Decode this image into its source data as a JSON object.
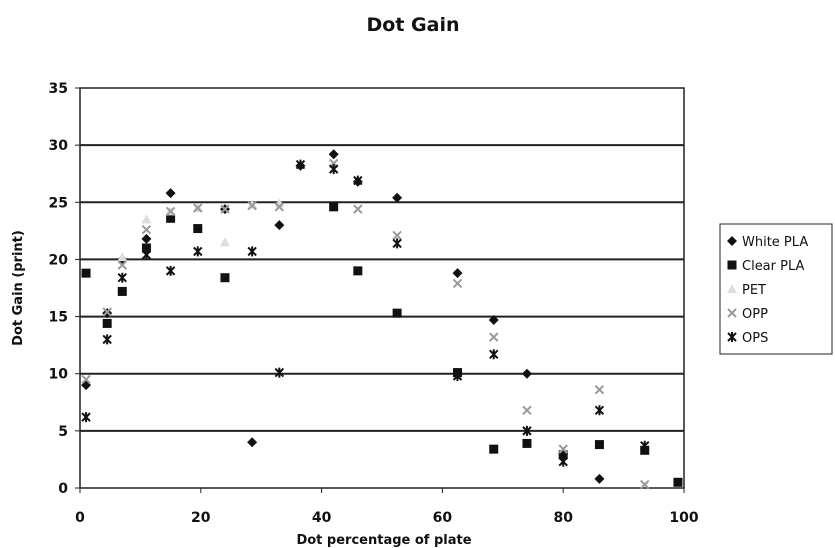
{
  "chart_data": {
    "type": "scatter",
    "title": "Dot Gain",
    "xlabel": "Dot percentage of plate",
    "ylabel": "Dot Gain (print)",
    "xlim": [
      0,
      100
    ],
    "ylim": [
      0,
      35
    ],
    "xticks": [
      "0",
      "20",
      "40",
      "60",
      "80",
      "100"
    ],
    "yticks": [
      "0",
      "5",
      "10",
      "15",
      "20",
      "25",
      "30",
      "35"
    ],
    "grid": "horizontal",
    "legend_position": "right",
    "series": [
      {
        "name": "White PLA",
        "marker": "diamond",
        "color": "#111111",
        "x": [
          1,
          4.5,
          7,
          11,
          15,
          24,
          28.5,
          33,
          36.5,
          42,
          46,
          52.5,
          62.5,
          68.5,
          74,
          80,
          86
        ],
        "y": [
          9,
          15.3,
          20,
          21.8,
          25.8,
          24.4,
          4,
          23,
          28.2,
          29.2,
          26.8,
          25.4,
          18.8,
          14.7,
          10,
          3,
          0.8
        ]
      },
      {
        "name": "Clear PLA",
        "marker": "square",
        "color": "#111111",
        "x": [
          1,
          4.5,
          7,
          11,
          15,
          19.5,
          24,
          42,
          46,
          52.5,
          62.5,
          68.5,
          74,
          80,
          86,
          93.5,
          99
        ],
        "y": [
          18.8,
          14.4,
          17.2,
          21,
          23.6,
          22.7,
          18.4,
          24.6,
          19,
          15.3,
          10.1,
          3.4,
          3.9,
          2.9,
          3.8,
          3.3,
          0.5
        ]
      },
      {
        "name": "PET",
        "marker": "triangle",
        "color": "#dddddd",
        "x": [
          7,
          11,
          15,
          19.5,
          24,
          28.5,
          33
        ],
        "y": [
          20.2,
          23.5,
          24.2,
          24.5,
          21.5,
          24.8,
          24.9
        ]
      },
      {
        "name": "OPP",
        "marker": "x",
        "color": "#9a9a9a",
        "x": [
          1,
          4.5,
          7,
          11,
          15,
          19.5,
          24,
          28.5,
          33,
          42,
          46,
          52.5,
          62.5,
          68.5,
          74,
          80,
          86,
          93.5
        ],
        "y": [
          9.5,
          15.4,
          19.5,
          22.6,
          24.2,
          24.5,
          24.4,
          24.7,
          24.6,
          28.4,
          24.4,
          22.1,
          17.9,
          13.2,
          6.8,
          3.4,
          8.6,
          0.3
        ]
      },
      {
        "name": "OPS",
        "marker": "star",
        "color": "#111111",
        "x": [
          1,
          4.5,
          7,
          11,
          15,
          19.5,
          28.5,
          33,
          36.5,
          42,
          46,
          52.5,
          62.5,
          68.5,
          74,
          80,
          86,
          93.5
        ],
        "y": [
          6.2,
          13,
          18.4,
          20.4,
          19,
          20.7,
          20.7,
          10.1,
          28.3,
          27.9,
          26.9,
          21.4,
          9.8,
          11.7,
          5,
          2.3,
          6.8,
          3.7
        ]
      }
    ]
  }
}
